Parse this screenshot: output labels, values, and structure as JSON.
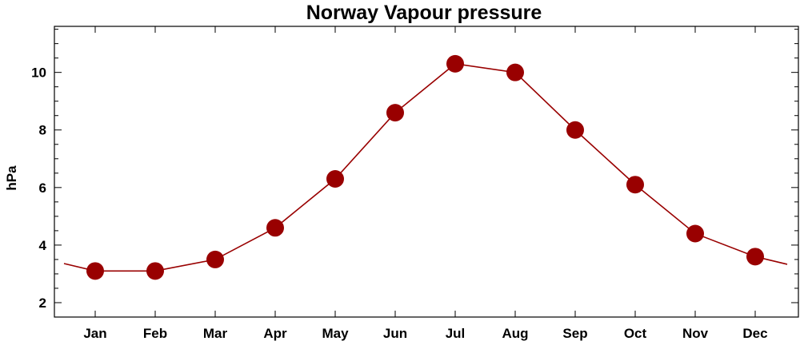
{
  "chart_data": {
    "type": "line",
    "title": "Norway Vapour pressure",
    "xlabel": "",
    "ylabel": "hPa",
    "categories": [
      "Jan",
      "Feb",
      "Mar",
      "Apr",
      "May",
      "Jun",
      "Jul",
      "Aug",
      "Sep",
      "Oct",
      "Nov",
      "Dec"
    ],
    "series": [
      {
        "values": [
          3.1,
          3.1,
          3.5,
          4.6,
          6.3,
          8.6,
          10.3,
          10.0,
          8.0,
          6.1,
          4.4,
          3.6
        ]
      }
    ],
    "ylim": [
      1.5,
      11.6
    ],
    "yticks": [
      2,
      4,
      6,
      8,
      10
    ],
    "grid": false,
    "legend": "none",
    "colors": {
      "series": "#990000",
      "line": "#990000",
      "axes": "#000000"
    }
  }
}
